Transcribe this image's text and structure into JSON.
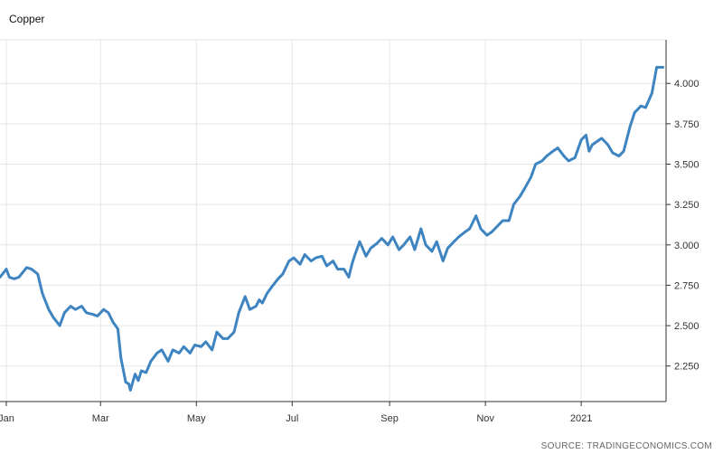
{
  "chart_data": {
    "type": "line",
    "title": "Copper",
    "xlabel": "",
    "ylabel": "",
    "source": "SOURCE: TRADINGECONOMICS.COM",
    "x_tick_labels": [
      "Jan",
      "Mar",
      "May",
      "Jul",
      "Sep",
      "Nov",
      "2021"
    ],
    "y_tick_labels": [
      "2.250",
      "2.500",
      "2.750",
      "3.000",
      "3.250",
      "3.500",
      "3.750",
      "4.000"
    ],
    "y_ticks": [
      2.25,
      2.5,
      2.75,
      3.0,
      3.25,
      3.5,
      3.75,
      4.0
    ],
    "ylim": [
      2.03,
      4.27
    ],
    "xlim": [
      "2019-12-28",
      "2021-02-24"
    ],
    "grid": true,
    "y_axis_position": "right",
    "line_color": "#3e84c0",
    "series": [
      {
        "x": [
          "2019-12-28",
          "2020-01-01",
          "2020-01-03",
          "2020-01-06",
          "2020-01-09",
          "2020-01-14",
          "2020-01-17",
          "2020-01-21",
          "2020-01-24",
          "2020-01-28",
          "2020-01-31",
          "2020-02-04",
          "2020-02-07",
          "2020-02-11",
          "2020-02-14",
          "2020-02-18",
          "2020-02-21",
          "2020-02-25",
          "2020-02-28",
          "2020-03-03",
          "2020-03-06",
          "2020-03-09",
          "2020-03-12",
          "2020-03-14",
          "2020-03-17",
          "2020-03-19",
          "2020-03-20",
          "2020-03-23",
          "2020-03-25",
          "2020-03-27",
          "2020-03-30",
          "2020-04-02",
          "2020-04-06",
          "2020-04-09",
          "2020-04-13",
          "2020-04-16",
          "2020-04-20",
          "2020-04-23",
          "2020-04-27",
          "2020-04-30",
          "2020-05-04",
          "2020-05-07",
          "2020-05-11",
          "2020-05-14",
          "2020-05-18",
          "2020-05-21",
          "2020-05-25",
          "2020-05-28",
          "2020-06-01",
          "2020-06-04",
          "2020-06-08",
          "2020-06-10",
          "2020-06-12",
          "2020-06-15",
          "2020-06-18",
          "2020-06-22",
          "2020-06-25",
          "2020-06-29",
          "2020-07-02",
          "2020-07-06",
          "2020-07-09",
          "2020-07-13",
          "2020-07-16",
          "2020-07-20",
          "2020-07-23",
          "2020-07-27",
          "2020-07-30",
          "2020-08-03",
          "2020-08-06",
          "2020-08-08",
          "2020-08-10",
          "2020-08-13",
          "2020-08-17",
          "2020-08-20",
          "2020-08-24",
          "2020-08-27",
          "2020-08-31",
          "2020-09-03",
          "2020-09-07",
          "2020-09-10",
          "2020-09-14",
          "2020-09-17",
          "2020-09-21",
          "2020-09-24",
          "2020-09-28",
          "2020-10-01",
          "2020-10-05",
          "2020-10-08",
          "2020-10-12",
          "2020-10-15",
          "2020-10-19",
          "2020-10-22",
          "2020-10-26",
          "2020-10-29",
          "2020-11-02",
          "2020-11-05",
          "2020-11-09",
          "2020-11-12",
          "2020-11-16",
          "2020-11-19",
          "2020-11-23",
          "2020-11-26",
          "2020-11-30",
          "2020-12-03",
          "2020-12-07",
          "2020-12-10",
          "2020-12-14",
          "2020-12-17",
          "2020-12-21",
          "2020-12-24",
          "2020-12-28",
          "2021-01-01",
          "2021-01-04",
          "2021-01-06",
          "2021-01-08",
          "2021-01-11",
          "2021-01-14",
          "2021-01-18",
          "2021-01-21",
          "2021-01-25",
          "2021-01-28",
          "2021-02-01",
          "2021-02-04",
          "2021-02-08",
          "2021-02-11",
          "2021-02-15",
          "2021-02-18",
          "2021-02-22"
        ],
        "y": [
          2.8,
          2.85,
          2.8,
          2.79,
          2.8,
          2.86,
          2.85,
          2.82,
          2.7,
          2.6,
          2.55,
          2.5,
          2.58,
          2.62,
          2.6,
          2.62,
          2.58,
          2.57,
          2.56,
          2.6,
          2.58,
          2.52,
          2.48,
          2.3,
          2.15,
          2.14,
          2.1,
          2.2,
          2.16,
          2.22,
          2.21,
          2.28,
          2.33,
          2.35,
          2.28,
          2.35,
          2.33,
          2.37,
          2.33,
          2.38,
          2.37,
          2.4,
          2.35,
          2.46,
          2.42,
          2.42,
          2.46,
          2.58,
          2.68,
          2.6,
          2.62,
          2.66,
          2.64,
          2.7,
          2.74,
          2.79,
          2.82,
          2.9,
          2.92,
          2.88,
          2.94,
          2.9,
          2.92,
          2.93,
          2.87,
          2.9,
          2.85,
          2.85,
          2.8,
          2.88,
          2.94,
          3.02,
          2.93,
          2.98,
          3.01,
          3.04,
          3.0,
          3.05,
          2.97,
          3.0,
          3.05,
          2.97,
          3.1,
          3.0,
          2.96,
          3.02,
          2.9,
          2.98,
          3.02,
          3.05,
          3.08,
          3.1,
          3.18,
          3.1,
          3.06,
          3.08,
          3.12,
          3.15,
          3.15,
          3.25,
          3.3,
          3.35,
          3.42,
          3.5,
          3.52,
          3.55,
          3.58,
          3.6,
          3.55,
          3.52,
          3.54,
          3.65,
          3.68,
          3.58,
          3.62,
          3.64,
          3.66,
          3.62,
          3.57,
          3.55,
          3.58,
          3.73,
          3.82,
          3.86,
          3.85,
          3.94,
          4.1,
          4.1
        ]
      }
    ]
  }
}
